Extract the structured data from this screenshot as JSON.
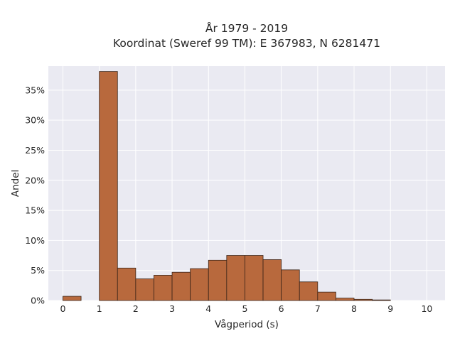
{
  "chart_data": {
    "type": "bar",
    "title_line1": "År 1979 - 2019",
    "title_line2": "Koordinat (Sweref 99 TM): E 367983, N 6281471",
    "xlabel": "Vågperiod (s)",
    "ylabel": "Andel",
    "xlim": [
      -0.4,
      10.5
    ],
    "ylim": [
      0,
      0.39
    ],
    "xticks": [
      0,
      1,
      2,
      3,
      4,
      5,
      6,
      7,
      8,
      9,
      10
    ],
    "xtick_labels": [
      "0",
      "1",
      "2",
      "3",
      "4",
      "5",
      "6",
      "7",
      "8",
      "9",
      "10"
    ],
    "yticks": [
      0,
      0.05,
      0.1,
      0.15,
      0.2,
      0.25,
      0.3,
      0.35
    ],
    "ytick_labels": [
      "0%",
      "5%",
      "10%",
      "15%",
      "20%",
      "25%",
      "30%",
      "35%"
    ],
    "bin_width": 0.5,
    "bins": [
      {
        "x0": 0.0,
        "value": 0.007
      },
      {
        "x0": 0.5,
        "value": 0.0
      },
      {
        "x0": 1.0,
        "value": 0.381
      },
      {
        "x0": 1.5,
        "value": 0.054
      },
      {
        "x0": 2.0,
        "value": 0.036
      },
      {
        "x0": 2.5,
        "value": 0.042
      },
      {
        "x0": 3.0,
        "value": 0.047
      },
      {
        "x0": 3.5,
        "value": 0.053
      },
      {
        "x0": 4.0,
        "value": 0.067
      },
      {
        "x0": 4.5,
        "value": 0.075
      },
      {
        "x0": 5.0,
        "value": 0.075
      },
      {
        "x0": 5.5,
        "value": 0.068
      },
      {
        "x0": 6.0,
        "value": 0.051
      },
      {
        "x0": 6.5,
        "value": 0.031
      },
      {
        "x0": 7.0,
        "value": 0.014
      },
      {
        "x0": 7.5,
        "value": 0.004
      },
      {
        "x0": 8.0,
        "value": 0.002
      },
      {
        "x0": 8.5,
        "value": 0.001
      },
      {
        "x0": 9.0,
        "value": 0.0
      },
      {
        "x0": 9.5,
        "value": 0.0
      }
    ],
    "grid": true,
    "legend": "none",
    "colors": {
      "bar_fill": "#B8693D",
      "bar_edge": "#3a2418",
      "plot_bg": "#EAEAF2",
      "grid": "#ffffff",
      "text": "#262626"
    }
  }
}
